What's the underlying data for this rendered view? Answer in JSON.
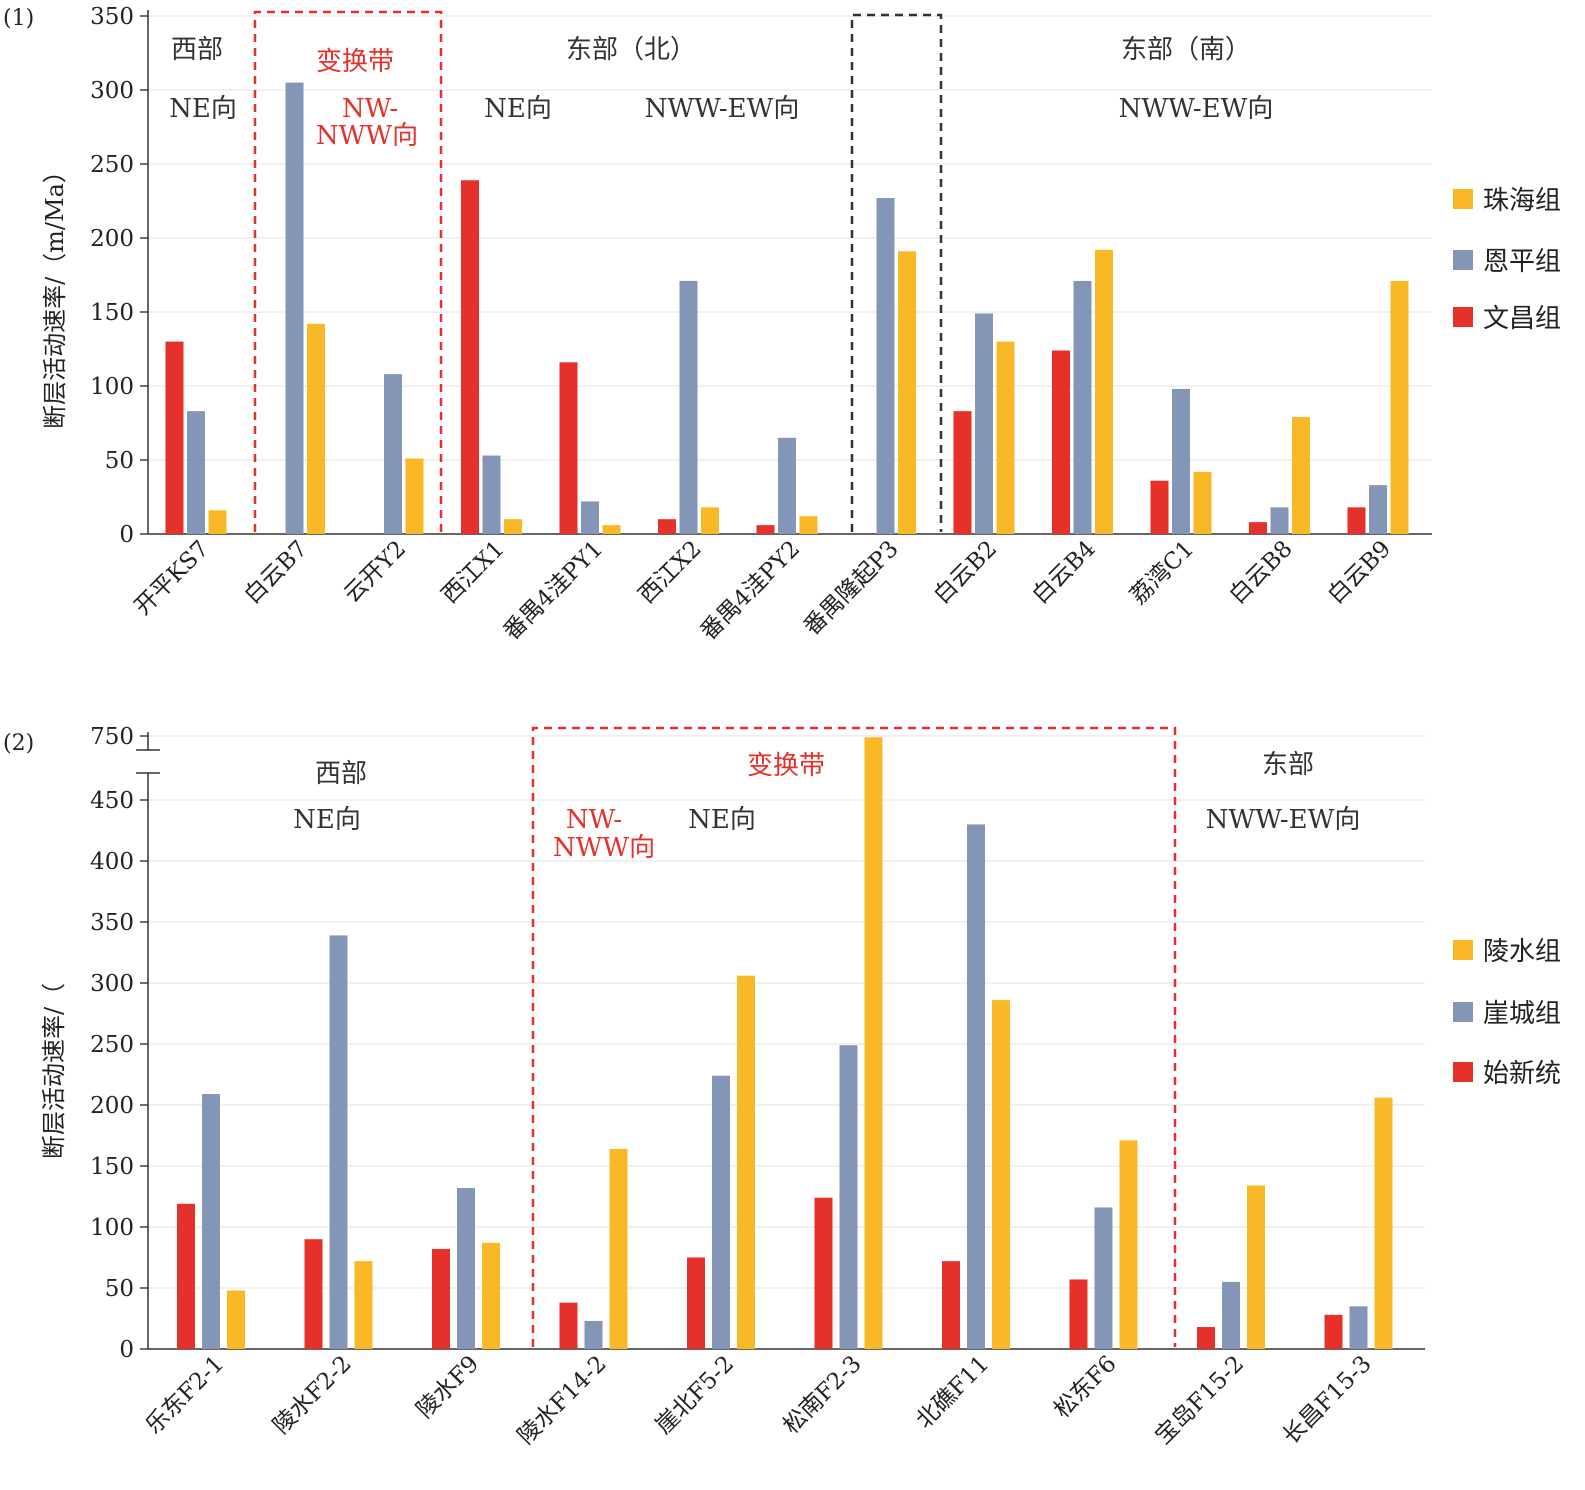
{
  "chart_data": [
    {
      "type": "bar",
      "panel_label": "(1)",
      "ylabel": "断层活动速率/（m/Ma）",
      "ylim": [
        0,
        350
      ],
      "yticks": [
        0,
        50,
        100,
        150,
        200,
        250,
        300,
        350
      ],
      "grid": true,
      "legend_position": "right",
      "categories": [
        "开平KS7",
        "白云B7",
        "云开Y2",
        "西江X1",
        "番禺4洼PY1",
        "西江X2",
        "番禺4洼PY2",
        "番禺隆起P3",
        "白云B2",
        "白云B4",
        "荔湾C1",
        "白云B8",
        "白云B9"
      ],
      "series": [
        {
          "name": "文昌组",
          "color": "#e5312a",
          "values": [
            130,
            null,
            null,
            239,
            116,
            10,
            6,
            null,
            83,
            124,
            36,
            8,
            18
          ]
        },
        {
          "name": "恩平组",
          "color": "#8496b8",
          "values": [
            83,
            305,
            108,
            53,
            22,
            171,
            65,
            227,
            149,
            171,
            98,
            18,
            33
          ]
        },
        {
          "name": "珠海组",
          "color": "#f9b825",
          "values": [
            16,
            142,
            51,
            10,
            6,
            18,
            12,
            191,
            130,
            192,
            42,
            79,
            171
          ]
        }
      ],
      "legend": [
        "珠海组",
        "恩平组",
        "文昌组"
      ],
      "annotations": [
        {
          "text": "西部",
          "color": "#333333"
        },
        {
          "text": "NE向",
          "color": "#333333"
        },
        {
          "text": "变换带",
          "color": "#e5312a"
        },
        {
          "text": "NW-",
          "color": "#e5312a"
        },
        {
          "text": "NWW向",
          "color": "#e5312a"
        },
        {
          "text": "东部（北）",
          "color": "#333333"
        },
        {
          "text": "NE向",
          "color": "#333333"
        },
        {
          "text": "NWW-EW向",
          "color": "#333333"
        },
        {
          "text": "东部（南）",
          "color": "#333333"
        },
        {
          "text": "NWW-EW向",
          "color": "#333333"
        }
      ]
    },
    {
      "type": "bar",
      "panel_label": "(2)",
      "ylabel": "断层活动速率/（",
      "ylim": [
        0,
        750
      ],
      "axis_break": [
        470,
        730
      ],
      "yticks": [
        0,
        50,
        100,
        150,
        200,
        250,
        300,
        350,
        400,
        450,
        750
      ],
      "grid": true,
      "legend_position": "right",
      "categories": [
        "乐东F2-1",
        "陵水F2-2",
        "陵水F9",
        "陵水F14-2",
        "崖北F5-2",
        "松南F2-3",
        "北礁F11",
        "松东F6",
        "宝岛F15-2",
        "长昌F15-3"
      ],
      "series": [
        {
          "name": "始新统",
          "color": "#e5312a",
          "values": [
            119,
            90,
            82,
            38,
            75,
            124,
            72,
            57,
            18,
            28
          ]
        },
        {
          "name": "崖城组",
          "color": "#8496b8",
          "values": [
            209,
            339,
            132,
            23,
            224,
            249,
            430,
            116,
            55,
            35
          ]
        },
        {
          "name": "陵水组",
          "color": "#f9b825",
          "values": [
            48,
            72,
            87,
            164,
            306,
            740,
            286,
            171,
            134,
            206
          ]
        }
      ],
      "legend": [
        "陵水组",
        "崖城组",
        "始新统"
      ],
      "annotations": [
        {
          "text": "西部",
          "color": "#333333"
        },
        {
          "text": "NE向",
          "color": "#333333"
        },
        {
          "text": "变换带",
          "color": "#e5312a"
        },
        {
          "text": "NW-",
          "color": "#e5312a"
        },
        {
          "text": "NWW向",
          "color": "#e5312a"
        },
        {
          "text": "NE向",
          "color": "#333333"
        },
        {
          "text": "东部",
          "color": "#333333"
        },
        {
          "text": "NWW-EW向",
          "color": "#333333"
        }
      ]
    }
  ]
}
